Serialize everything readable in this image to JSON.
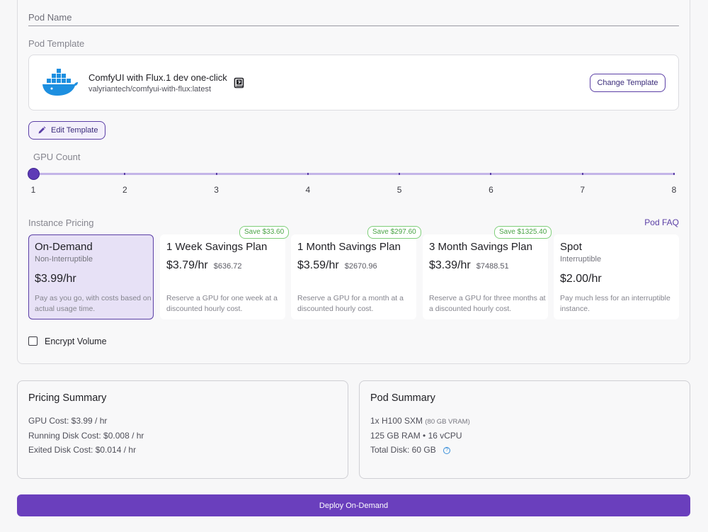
{
  "form": {
    "pod_name_label": "Pod Name",
    "pod_template_label": "Pod Template",
    "template": {
      "name": "ComfyUI with Flux.1 dev one-click",
      "image": "valyriantech/comfyui-with-flux:latest",
      "icon": "docker-whale-icon",
      "readme_icon": "readme-book-icon",
      "change_button": "Change Template"
    },
    "edit_button": "Edit Template",
    "gpu_count": {
      "label": "GPU Count",
      "min": 1,
      "max": 8,
      "value": 1,
      "ticks": [
        "1",
        "2",
        "3",
        "4",
        "5",
        "6",
        "7",
        "8"
      ]
    },
    "pricing": {
      "label": "Instance Pricing",
      "faq_link": "Pod FAQ",
      "plans": [
        {
          "title": "On-Demand",
          "subtitle": "Non-Interruptible",
          "price": "$3.99/hr",
          "total": "",
          "desc": "Pay as you go, with costs based on actual usage time.",
          "badge": "",
          "selected": true
        },
        {
          "title": "1 Week Savings Plan",
          "subtitle": "",
          "price": "$3.79/hr",
          "total": "$636.72",
          "desc": "Reserve a GPU for one week at a discounted hourly cost.",
          "badge": "Save $33.60",
          "selected": false
        },
        {
          "title": "1 Month Savings Plan",
          "subtitle": "",
          "price": "$3.59/hr",
          "total": "$2670.96",
          "desc": "Reserve a GPU for a month at a discounted hourly cost.",
          "badge": "Save $297.60",
          "selected": false
        },
        {
          "title": "3 Month Savings Plan",
          "subtitle": "",
          "price": "$3.39/hr",
          "total": "$7488.51",
          "desc": "Reserve a GPU for three months at a discounted hourly cost.",
          "badge": "Save $1325.40",
          "selected": false
        },
        {
          "title": "Spot",
          "subtitle": "Interruptible",
          "price": "$2.00/hr",
          "total": "",
          "desc": "Pay much less for an interruptible instance.",
          "badge": "",
          "selected": false
        }
      ]
    },
    "encrypt_volume": {
      "label": "Encrypt Volume",
      "checked": false
    }
  },
  "pricing_summary": {
    "title": "Pricing Summary",
    "lines": [
      "GPU Cost: $3.99 / hr",
      "Running Disk Cost: $0.008 / hr",
      "Exited Disk Cost: $0.014 / hr"
    ]
  },
  "pod_summary": {
    "title": "Pod Summary",
    "gpu": "1x H100 SXM",
    "gpu_vram": "(80 GB VRAM)",
    "ram_cpu": "125 GB RAM • 16 vCPU",
    "disk": "Total Disk: 60 GB",
    "help_icon": "question-circle-icon"
  },
  "deploy_button": "Deploy On-Demand",
  "colors": {
    "accent": "#6a3fbd",
    "save_green": "#4aa346",
    "docker_blue": "#1d8fe0"
  }
}
